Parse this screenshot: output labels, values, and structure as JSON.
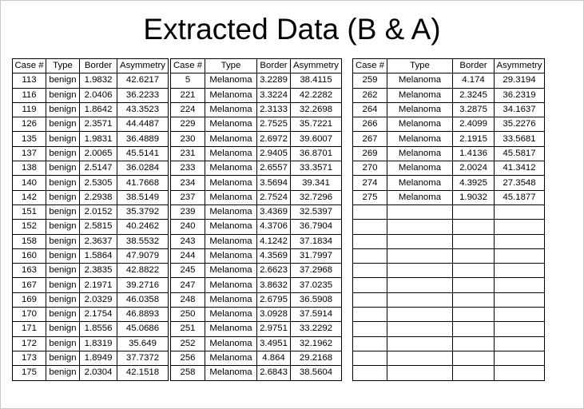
{
  "title": "Extracted Data (B & A)",
  "headers": [
    "Case #",
    "Type",
    "Border",
    "Asymmetry"
  ],
  "left": [
    [
      "113",
      "benign",
      "1.9832",
      "42.6217"
    ],
    [
      "116",
      "benign",
      "2.0406",
      "36.2233"
    ],
    [
      "119",
      "benign",
      "1.8642",
      "43.3523"
    ],
    [
      "126",
      "benign",
      "2.3571",
      "44.4487"
    ],
    [
      "135",
      "benign",
      "1.9831",
      "36.4889"
    ],
    [
      "137",
      "benign",
      "2.0065",
      "45.5141"
    ],
    [
      "138",
      "benign",
      "2.5147",
      "36.0284"
    ],
    [
      "140",
      "benign",
      "2.5305",
      "41.7668"
    ],
    [
      "142",
      "benign",
      "2.2938",
      "38.5149"
    ],
    [
      "151",
      "benign",
      "2.0152",
      "35.3792"
    ],
    [
      "152",
      "benign",
      "2.5815",
      "40.2462"
    ],
    [
      "158",
      "benign",
      "2.3637",
      "38.5532"
    ],
    [
      "160",
      "benign",
      "1.5864",
      "47.9079"
    ],
    [
      "163",
      "benign",
      "2.3835",
      "42.8822"
    ],
    [
      "167",
      "benign",
      "2.1971",
      "39.2716"
    ],
    [
      "169",
      "benign",
      "2.0329",
      "46.0358"
    ],
    [
      "170",
      "benign",
      "2.1754",
      "46.8893"
    ],
    [
      "171",
      "benign",
      "1.8556",
      "45.0686"
    ],
    [
      "172",
      "benign",
      "1.8319",
      "35.649"
    ],
    [
      "173",
      "benign",
      "1.8949",
      "37.7372"
    ],
    [
      "175",
      "benign",
      "2.0304",
      "42.1518"
    ]
  ],
  "middle": [
    [
      "5",
      "Melanoma",
      "3.2289",
      "38.4115"
    ],
    [
      "221",
      "Melanoma",
      "3.3224",
      "42.2282"
    ],
    [
      "224",
      "Melanoma",
      "2.3133",
      "32.2698"
    ],
    [
      "229",
      "Melanoma",
      "2.7525",
      "35.7221"
    ],
    [
      "230",
      "Melanoma",
      "2.6972",
      "39.6007"
    ],
    [
      "231",
      "Melanoma",
      "2.9405",
      "36.8701"
    ],
    [
      "233",
      "Melanoma",
      "2.6557",
      "33.3571"
    ],
    [
      "234",
      "Melanoma",
      "3.5694",
      "39.341"
    ],
    [
      "237",
      "Melanoma",
      "2.7524",
      "32.7296"
    ],
    [
      "239",
      "Melanoma",
      "3.4369",
      "32.5397"
    ],
    [
      "240",
      "Melanoma",
      "4.3706",
      "36.7904"
    ],
    [
      "243",
      "Melanoma",
      "4.1242",
      "37.1834"
    ],
    [
      "244",
      "Melanoma",
      "4.3569",
      "31.7997"
    ],
    [
      "245",
      "Melanoma",
      "2.6623",
      "37.2968"
    ],
    [
      "247",
      "Melanoma",
      "3.8632",
      "37.0235"
    ],
    [
      "248",
      "Melanoma",
      "2.6795",
      "36.5908"
    ],
    [
      "250",
      "Melanoma",
      "3.0928",
      "37.5914"
    ],
    [
      "251",
      "Melanoma",
      "2.9751",
      "33.2292"
    ],
    [
      "252",
      "Melanoma",
      "3.4951",
      "32.1962"
    ],
    [
      "256",
      "Melanoma",
      "4.864",
      "29.2168"
    ],
    [
      "258",
      "Melanoma",
      "2.6843",
      "38.5604"
    ]
  ],
  "right": [
    [
      "259",
      "Melanoma",
      "4.174",
      "29.3194"
    ],
    [
      "262",
      "Melanoma",
      "2.3245",
      "36.2319"
    ],
    [
      "264",
      "Melanoma",
      "3.2875",
      "34.1637"
    ],
    [
      "266",
      "Melanoma",
      "2.4099",
      "35.2276"
    ],
    [
      "267",
      "Melanoma",
      "2.1915",
      "33.5681"
    ],
    [
      "269",
      "Melanoma",
      "1.4136",
      "45.5817"
    ],
    [
      "270",
      "Melanoma",
      "2.0024",
      "41.3412"
    ],
    [
      "274",
      "Melanoma",
      "4.3925",
      "27.3548"
    ],
    [
      "275",
      "Melanoma",
      "1.9032",
      "45.1877"
    ]
  ]
}
